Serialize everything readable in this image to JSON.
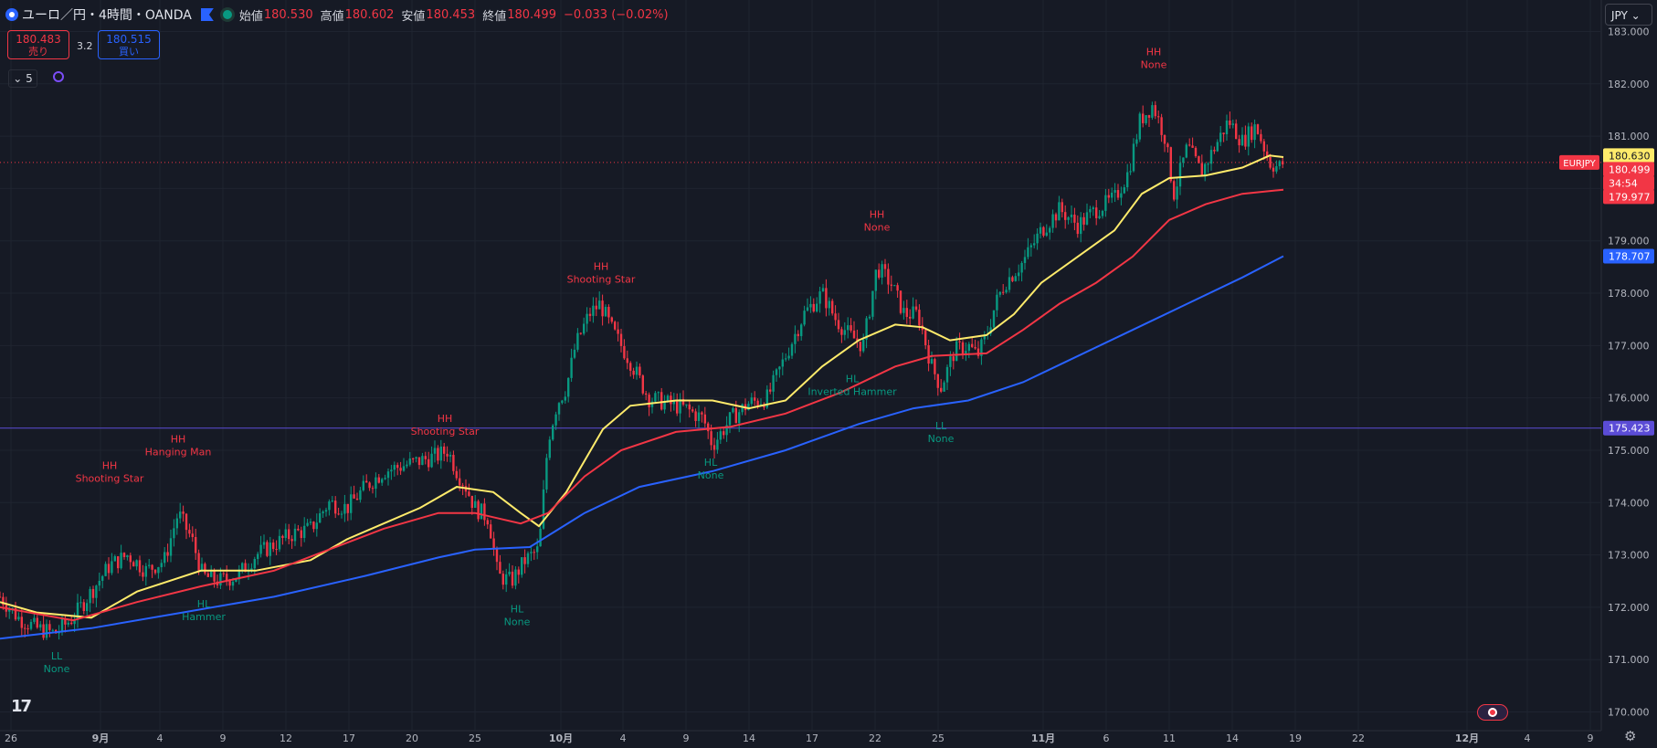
{
  "header": {
    "symbol": "ユーロ／円・4時間・OANDA",
    "open_label": "始値",
    "open": "180.530",
    "high_label": "高値",
    "high": "180.602",
    "low_label": "安値",
    "low": "180.453",
    "close_label": "終値",
    "close": "180.499",
    "change": "−0.033 (−0.02%)"
  },
  "trade": {
    "sell_price": "180.483",
    "sell_label": "売り",
    "spread": "3.2",
    "buy_price": "180.515",
    "buy_label": "買い"
  },
  "indicator_toggle": "5",
  "currency_select": "JPY",
  "colors": {
    "background": "#161a25",
    "up": "#089981",
    "down": "#f23645",
    "ma_fast": "#ffeb6b",
    "ma_mid": "#f23645",
    "ma_slow": "#2962ff",
    "hline": "#5b4cd6"
  },
  "chart_data": {
    "type": "candlestick",
    "y_ticks": [
      "183.000",
      "182.000",
      "181.000",
      "180.000",
      "179.000",
      "178.000",
      "177.000",
      "176.000",
      "175.000",
      "174.000",
      "173.000",
      "172.000",
      "171.000",
      "170.000"
    ],
    "ylim": [
      170,
      183.2
    ],
    "x_ticks": [
      "26",
      "9月",
      "4",
      "9",
      "12",
      "17",
      "20",
      "25",
      "10月",
      "4",
      "9",
      "14",
      "17",
      "22",
      "25",
      "11月",
      "6",
      "11",
      "14",
      "19",
      "22",
      "12月",
      "4",
      "9"
    ],
    "series": [
      {
        "name": "MA fast",
        "color": "#ffeb6b",
        "values": [
          [
            0,
            172.1
          ],
          [
            40,
            171.9
          ],
          [
            100,
            171.8
          ],
          [
            150,
            172.3
          ],
          [
            220,
            172.7
          ],
          [
            280,
            172.7
          ],
          [
            340,
            172.9
          ],
          [
            380,
            173.3
          ],
          [
            420,
            173.6
          ],
          [
            460,
            173.9
          ],
          [
            500,
            174.3
          ],
          [
            540,
            174.2
          ],
          [
            570,
            173.8
          ],
          [
            590,
            173.55
          ],
          [
            620,
            174.2
          ],
          [
            660,
            175.4
          ],
          [
            690,
            175.85
          ],
          [
            740,
            175.95
          ],
          [
            780,
            175.95
          ],
          [
            820,
            175.8
          ],
          [
            860,
            175.95
          ],
          [
            900,
            176.6
          ],
          [
            940,
            177.1
          ],
          [
            980,
            177.4
          ],
          [
            1010,
            177.35
          ],
          [
            1040,
            177.1
          ],
          [
            1080,
            177.2
          ],
          [
            1110,
            177.6
          ],
          [
            1140,
            178.2
          ],
          [
            1180,
            178.7
          ],
          [
            1220,
            179.2
          ],
          [
            1250,
            179.9
          ],
          [
            1280,
            180.2
          ],
          [
            1320,
            180.25
          ],
          [
            1360,
            180.4
          ],
          [
            1390,
            180.63
          ],
          [
            1405,
            180.6
          ]
        ]
      },
      {
        "name": "MA mid",
        "color": "#f23645",
        "values": [
          [
            0,
            172.0
          ],
          [
            80,
            171.75
          ],
          [
            150,
            172.1
          ],
          [
            220,
            172.4
          ],
          [
            300,
            172.7
          ],
          [
            360,
            173.1
          ],
          [
            420,
            173.5
          ],
          [
            480,
            173.8
          ],
          [
            520,
            173.8
          ],
          [
            570,
            173.6
          ],
          [
            600,
            173.8
          ],
          [
            640,
            174.5
          ],
          [
            680,
            175.0
          ],
          [
            740,
            175.35
          ],
          [
            800,
            175.45
          ],
          [
            860,
            175.7
          ],
          [
            920,
            176.1
          ],
          [
            980,
            176.6
          ],
          [
            1020,
            176.8
          ],
          [
            1080,
            176.85
          ],
          [
            1120,
            177.3
          ],
          [
            1160,
            177.8
          ],
          [
            1200,
            178.2
          ],
          [
            1240,
            178.7
          ],
          [
            1280,
            179.4
          ],
          [
            1320,
            179.7
          ],
          [
            1360,
            179.9
          ],
          [
            1405,
            179.977
          ]
        ]
      },
      {
        "name": "MA slow",
        "color": "#2962ff",
        "values": [
          [
            0,
            171.4
          ],
          [
            100,
            171.6
          ],
          [
            200,
            171.9
          ],
          [
            300,
            172.2
          ],
          [
            400,
            172.6
          ],
          [
            480,
            172.95
          ],
          [
            520,
            173.1
          ],
          [
            580,
            173.15
          ],
          [
            640,
            173.8
          ],
          [
            700,
            174.3
          ],
          [
            780,
            174.6
          ],
          [
            860,
            175.0
          ],
          [
            940,
            175.5
          ],
          [
            1000,
            175.8
          ],
          [
            1060,
            175.95
          ],
          [
            1120,
            176.3
          ],
          [
            1180,
            176.8
          ],
          [
            1240,
            177.3
          ],
          [
            1300,
            177.8
          ],
          [
            1360,
            178.3
          ],
          [
            1405,
            178.707
          ]
        ]
      }
    ],
    "closes": [
      [
        0,
        172.2
      ],
      [
        20,
        171.8
      ],
      [
        40,
        171.6
      ],
      [
        60,
        171.5
      ],
      [
        80,
        171.8
      ],
      [
        100,
        172.3
      ],
      [
        120,
        172.8
      ],
      [
        140,
        173.0
      ],
      [
        160,
        172.7
      ],
      [
        180,
        172.9
      ],
      [
        195,
        173.8
      ],
      [
        210,
        173.3
      ],
      [
        222,
        172.6
      ],
      [
        240,
        172.5
      ],
      [
        260,
        172.6
      ],
      [
        280,
        173.0
      ],
      [
        300,
        173.2
      ],
      [
        320,
        173.4
      ],
      [
        340,
        173.5
      ],
      [
        360,
        174.0
      ],
      [
        380,
        173.9
      ],
      [
        400,
        174.3
      ],
      [
        420,
        174.6
      ],
      [
        440,
        174.7
      ],
      [
        460,
        174.8
      ],
      [
        480,
        174.9
      ],
      [
        490,
        175.0
      ],
      [
        500,
        174.6
      ],
      [
        510,
        174.3
      ],
      [
        520,
        173.9
      ],
      [
        535,
        173.7
      ],
      [
        545,
        172.6
      ],
      [
        560,
        172.5
      ],
      [
        575,
        172.9
      ],
      [
        590,
        173.1
      ],
      [
        600,
        175.2
      ],
      [
        610,
        175.9
      ],
      [
        620,
        176.2
      ],
      [
        630,
        177.0
      ],
      [
        645,
        177.6
      ],
      [
        657,
        177.8
      ],
      [
        670,
        177.3
      ],
      [
        690,
        176.7
      ],
      [
        710,
        176.0
      ],
      [
        730,
        175.9
      ],
      [
        750,
        175.8
      ],
      [
        770,
        175.6
      ],
      [
        780,
        175.1
      ],
      [
        800,
        175.6
      ],
      [
        820,
        175.9
      ],
      [
        840,
        176.0
      ],
      [
        860,
        176.8
      ],
      [
        880,
        177.6
      ],
      [
        900,
        178.0
      ],
      [
        915,
        177.5
      ],
      [
        930,
        177.2
      ],
      [
        945,
        177.0
      ],
      [
        960,
        178.5
      ],
      [
        975,
        178.2
      ],
      [
        990,
        177.6
      ],
      [
        1005,
        177.6
      ],
      [
        1020,
        176.6
      ],
      [
        1030,
        176.2
      ],
      [
        1045,
        176.9
      ],
      [
        1060,
        177.0
      ],
      [
        1070,
        176.8
      ],
      [
        1080,
        177.2
      ],
      [
        1090,
        177.8
      ],
      [
        1100,
        178.2
      ],
      [
        1120,
        178.6
      ],
      [
        1140,
        179.2
      ],
      [
        1160,
        179.6
      ],
      [
        1180,
        179.3
      ],
      [
        1200,
        179.6
      ],
      [
        1220,
        179.8
      ],
      [
        1235,
        180.3
      ],
      [
        1248,
        181.3
      ],
      [
        1262,
        181.6
      ],
      [
        1275,
        181.0
      ],
      [
        1285,
        179.9
      ],
      [
        1300,
        180.8
      ],
      [
        1315,
        180.3
      ],
      [
        1330,
        180.8
      ],
      [
        1345,
        181.3
      ],
      [
        1360,
        180.9
      ],
      [
        1375,
        181.2
      ],
      [
        1390,
        180.5
      ],
      [
        1400,
        180.4
      ],
      [
        1405,
        180.499
      ]
    ],
    "price_labels": [
      {
        "text": "180.630",
        "price": 180.63,
        "bg": "#ffeb6b",
        "fg": "#131722"
      },
      {
        "text": "180.499",
        "price": 180.499,
        "bg": "#f23645",
        "fg": "#ffffff"
      },
      {
        "text": "34:54",
        "price": 180.22,
        "bg": "#f23645",
        "fg": "#ffffff"
      },
      {
        "text": "179.977",
        "price": 179.977,
        "bg": "#f23645",
        "fg": "#ffffff"
      },
      {
        "text": "178.707",
        "price": 178.707,
        "bg": "#2962ff",
        "fg": "#ffffff"
      },
      {
        "text": "175.423",
        "price": 175.423,
        "bg": "#5b4cd6",
        "fg": "#ffffff"
      }
    ],
    "symbol_tag": "EURJPY",
    "current_price": 180.499,
    "hline_price": 175.423,
    "annotations": [
      {
        "kind": "high",
        "label": "HH",
        "pattern": "Shooting Star",
        "bar": 120,
        "price": 174.4
      },
      {
        "kind": "high",
        "label": "HH",
        "pattern": "Hanging Man",
        "bar": 195,
        "price": 174.9
      },
      {
        "kind": "high",
        "label": "HH",
        "pattern": "Shooting Star",
        "bar": 487,
        "price": 175.3
      },
      {
        "kind": "high",
        "label": "HH",
        "pattern": "Shooting Star",
        "bar": 658,
        "price": 178.2
      },
      {
        "kind": "high",
        "label": "HH",
        "pattern": "None",
        "bar": 960,
        "price": 179.2
      },
      {
        "kind": "high",
        "label": "HH",
        "pattern": "None",
        "bar": 1263,
        "price": 182.3
      },
      {
        "kind": "low",
        "label": "LL",
        "pattern": "None",
        "bar": 62,
        "price": 171.0
      },
      {
        "kind": "low",
        "label": "HL",
        "pattern": "Hammer",
        "bar": 223,
        "price": 172.0
      },
      {
        "kind": "low",
        "label": "HL",
        "pattern": "None",
        "bar": 566,
        "price": 171.9
      },
      {
        "kind": "low",
        "label": "HL",
        "pattern": "None",
        "bar": 778,
        "price": 174.7
      },
      {
        "kind": "low",
        "label": "HL",
        "pattern": "Inverted Hammer",
        "bar": 933,
        "price": 176.3
      },
      {
        "kind": "low",
        "label": "LL",
        "pattern": "None",
        "bar": 1030,
        "price": 175.4
      }
    ]
  }
}
